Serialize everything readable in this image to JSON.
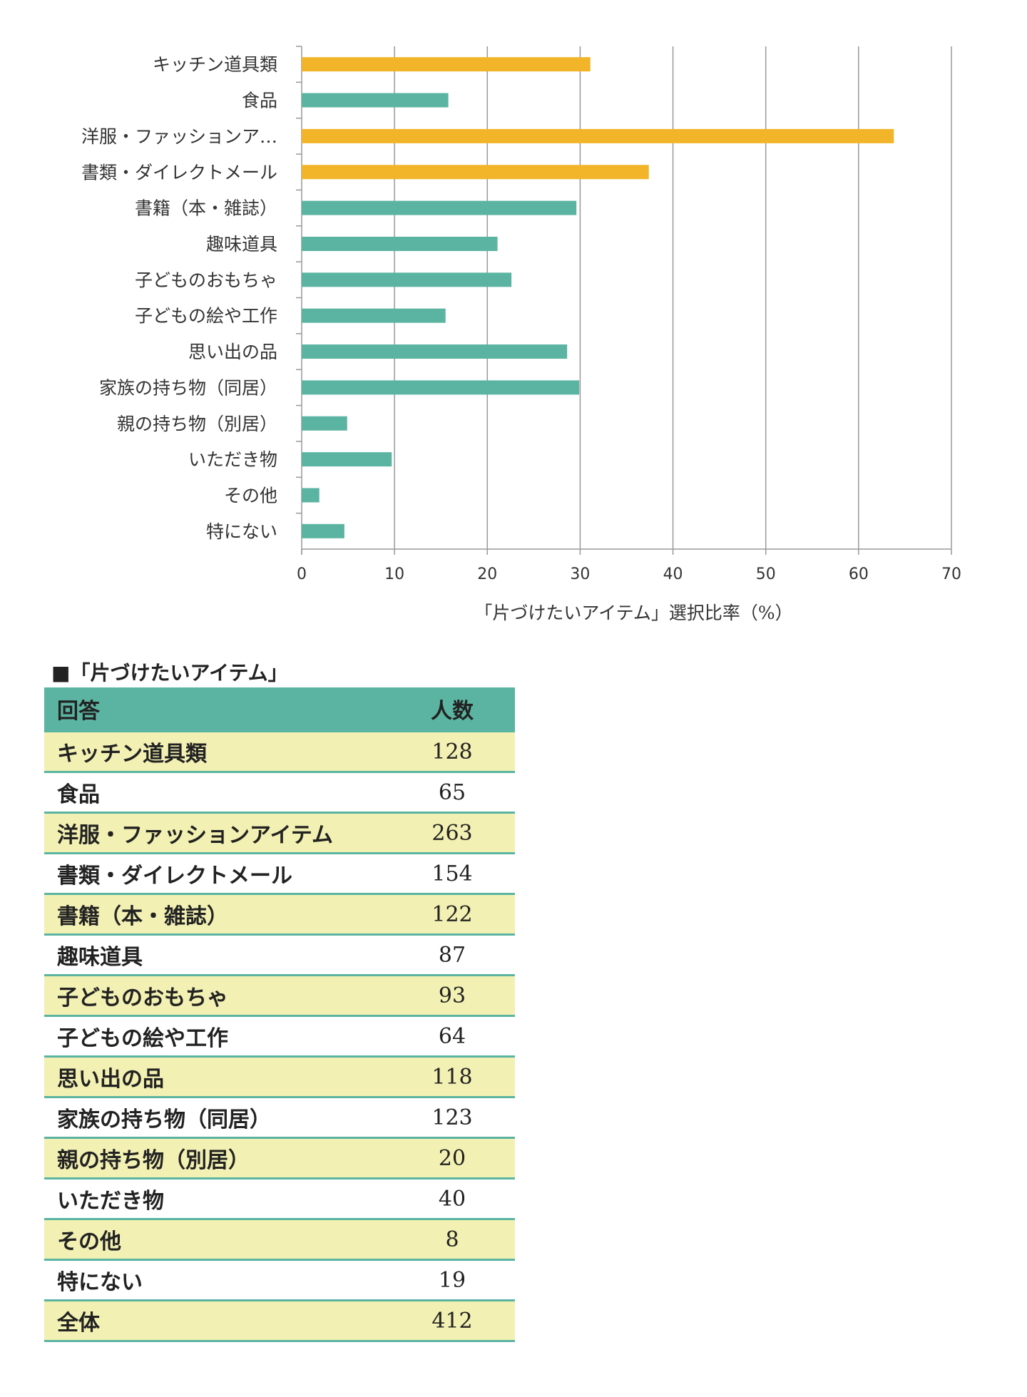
{
  "chart_data": {
    "type": "bar",
    "orientation": "horizontal",
    "categories": [
      "キッチン道具類",
      "食品",
      "洋服・ファッションア…",
      "書類・ダイレクトメール",
      "書籍（本・雑誌）",
      "趣味道具",
      "子どものおもちゃ",
      "子どもの絵や工作",
      "思い出の品",
      "家族の持ち物（同居）",
      "親の持ち物（別居）",
      "いただき物",
      "その他",
      "特にない"
    ],
    "values": [
      31.1,
      15.8,
      63.8,
      37.4,
      29.6,
      21.1,
      22.6,
      15.5,
      28.6,
      29.9,
      4.9,
      9.7,
      1.9,
      4.6
    ],
    "highlight": [
      true,
      false,
      true,
      true,
      false,
      false,
      false,
      false,
      false,
      false,
      false,
      false,
      false,
      false
    ],
    "xlabel": "「片づけたいアイテム」選択比率（%）",
    "ylabel": "",
    "xlim": [
      0,
      70
    ],
    "xticks": [
      "0",
      "10",
      "20",
      "30",
      "40",
      "50",
      "60",
      "70"
    ],
    "grid": true,
    "colors": {
      "highlight": "#f2b52a",
      "normal": "#5bb4a1"
    }
  },
  "table": {
    "title": "■「片づけたいアイテム」",
    "headers": [
      "回答",
      "人数"
    ],
    "rows": [
      [
        "キッチン道具類",
        "128"
      ],
      [
        "食品",
        "65"
      ],
      [
        "洋服・ファッションアイテム",
        "263"
      ],
      [
        "書類・ダイレクトメール",
        "154"
      ],
      [
        "書籍（本・雑誌）",
        "122"
      ],
      [
        "趣味道具",
        "87"
      ],
      [
        "子どものおもちゃ",
        "93"
      ],
      [
        "子どもの絵や工作",
        "64"
      ],
      [
        "思い出の品",
        "118"
      ],
      [
        "家族の持ち物（同居）",
        "123"
      ],
      [
        "親の持ち物（別居）",
        "20"
      ],
      [
        "いただき物",
        "40"
      ],
      [
        "その他",
        "8"
      ],
      [
        "特にない",
        "19"
      ],
      [
        "全体",
        "412"
      ]
    ]
  }
}
